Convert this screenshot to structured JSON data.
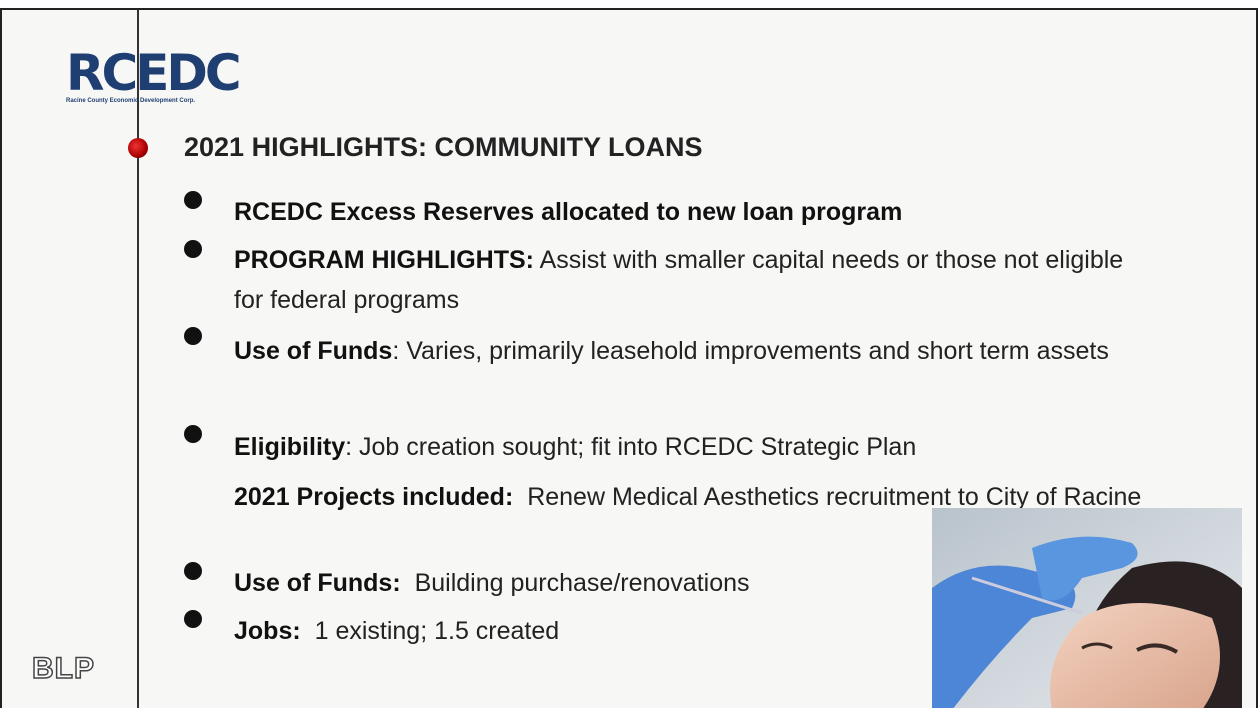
{
  "logo": {
    "name": "RCEDC",
    "subtitle": "Racine County Economic Development Corp."
  },
  "title": "2021 HIGHLIGHTS:  COMMUNITY LOANS",
  "items": [
    {
      "bold": "RCEDC Excess Reserves allocated to new loan program"
    },
    {
      "bold": "PROGRAM HIGHLIGHTS:",
      "text": "Assist with smaller capital needs or those not eligible for federal programs"
    },
    {
      "bold": "Use of Funds",
      "text": ": Varies, primarily leasehold improvements and short term assets"
    },
    {
      "bold": "Eligibility",
      "text": ": Job creation sought; fit into RCEDC Strategic Plan"
    },
    {
      "bold": "2021 Projects included:",
      "text": "Renew Medical Aesthetics recruitment to City of Racine"
    },
    {
      "bold": "Use of Funds:",
      "text": "Building purchase/renovations"
    },
    {
      "bold": "Jobs:",
      "text": "1 existing; 1.5 created"
    }
  ],
  "footer": "BLP"
}
